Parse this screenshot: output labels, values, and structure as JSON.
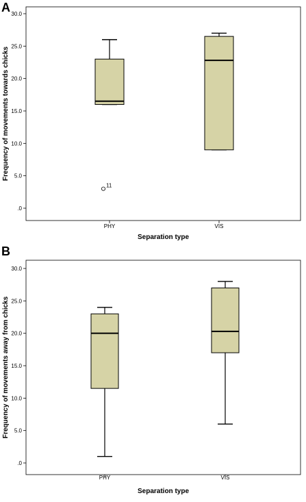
{
  "chart_data": [
    {
      "type": "box",
      "panel": "A",
      "title": "",
      "xlabel": "Separation type",
      "ylabel": "Frequency of movements towards chicks",
      "ylim": [
        0,
        30
      ],
      "yticks": [
        0,
        5,
        10,
        15,
        20,
        25,
        30
      ],
      "ytick_labels": [
        ".0",
        "5.0",
        "10.0",
        "15.0",
        "20.0",
        "25.0",
        "30.0"
      ],
      "categories": [
        "PHY",
        "VIS"
      ],
      "boxes": [
        {
          "category": "PHY",
          "whisker_low": 16,
          "q1": 16,
          "median": 16.5,
          "q3": 23,
          "whisker_high": 26,
          "outliers": [
            {
              "value": 3,
              "label": "11"
            }
          ]
        },
        {
          "category": "VIS",
          "whisker_low": 9,
          "q1": 9,
          "median": 22.8,
          "q3": 26.5,
          "whisker_high": 27,
          "outliers": []
        }
      ],
      "box_color": "#d6d3a6",
      "grid": false
    },
    {
      "type": "box",
      "panel": "B",
      "title": "",
      "xlabel": "Separation type",
      "ylabel": "Frequency of movements away from chicks",
      "ylim": [
        0,
        30
      ],
      "yticks": [
        0,
        5,
        10,
        15,
        20,
        25,
        30
      ],
      "ytick_labels": [
        ".0",
        "5.0",
        "10.0",
        "15.0",
        "20.0",
        "25.0",
        "30.0"
      ],
      "categories": [
        "PHY",
        "VIS"
      ],
      "boxes": [
        {
          "category": "PHY",
          "whisker_low": 1,
          "q1": 11.5,
          "median": 20,
          "q3": 23,
          "whisker_high": 24,
          "outliers": []
        },
        {
          "category": "VIS",
          "whisker_low": 6,
          "q1": 17,
          "median": 20.3,
          "q3": 27,
          "whisker_high": 28,
          "outliers": []
        }
      ],
      "box_color": "#d6d3a6",
      "grid": false
    }
  ]
}
